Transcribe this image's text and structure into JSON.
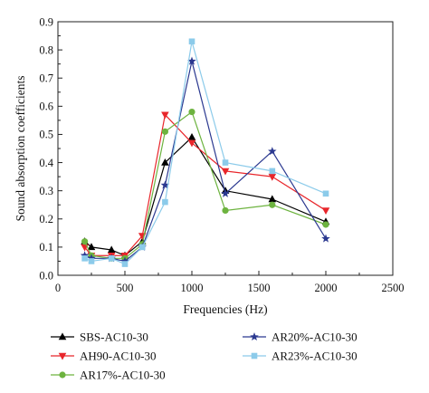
{
  "chart_data": {
    "type": "line",
    "title": "",
    "xlabel": "Frequencies (Hz)",
    "ylabel": "Sound absorption coefficients",
    "xlim": [
      0,
      2500
    ],
    "ylim": [
      0,
      0.9
    ],
    "xticks": [
      0,
      500,
      1000,
      1500,
      2000,
      2500
    ],
    "yticks": [
      0,
      0.1,
      0.2,
      0.3,
      0.4,
      0.5,
      0.6,
      0.7,
      0.8,
      0.9
    ],
    "xtick_labels": [
      "0",
      "500",
      "1000",
      "1500",
      "2000",
      "2500"
    ],
    "ytick_labels": [
      "0.0",
      "0.1",
      "0.2",
      "0.3",
      "0.4",
      "0.5",
      "0.6",
      "0.7",
      "0.8",
      "0.9"
    ],
    "grid": false,
    "legend_position": "bottom",
    "x": [
      200,
      250,
      400,
      500,
      630,
      800,
      1000,
      1250,
      1600,
      2000
    ],
    "series": [
      {
        "name": "SBS-AC10-30",
        "marker": "triangle-up",
        "color": "#000000",
        "values": [
          0.12,
          0.1,
          0.09,
          0.07,
          0.12,
          0.4,
          0.49,
          0.3,
          0.27,
          0.19
        ]
      },
      {
        "name": "AH90-AC10-30",
        "marker": "triangle-down",
        "color": "#e8262b",
        "values": [
          0.1,
          0.07,
          0.07,
          0.07,
          0.14,
          0.57,
          0.47,
          0.37,
          0.35,
          0.23
        ]
      },
      {
        "name": "AR17%-AC10-30",
        "marker": "circle",
        "color": "#6db33f",
        "values": [
          0.12,
          0.07,
          0.06,
          0.06,
          0.11,
          0.51,
          0.58,
          0.23,
          0.25,
          0.18
        ]
      },
      {
        "name": "AR20%-AC10-30",
        "marker": "star",
        "color": "#2b3990",
        "values": [
          0.07,
          0.06,
          0.06,
          0.05,
          0.1,
          0.32,
          0.76,
          0.29,
          0.44,
          0.13
        ]
      },
      {
        "name": "AR23%-AC10-30",
        "marker": "square",
        "color": "#8ccbea",
        "values": [
          0.06,
          0.05,
          0.06,
          0.04,
          0.1,
          0.26,
          0.83,
          0.4,
          0.37,
          0.29
        ]
      }
    ]
  }
}
